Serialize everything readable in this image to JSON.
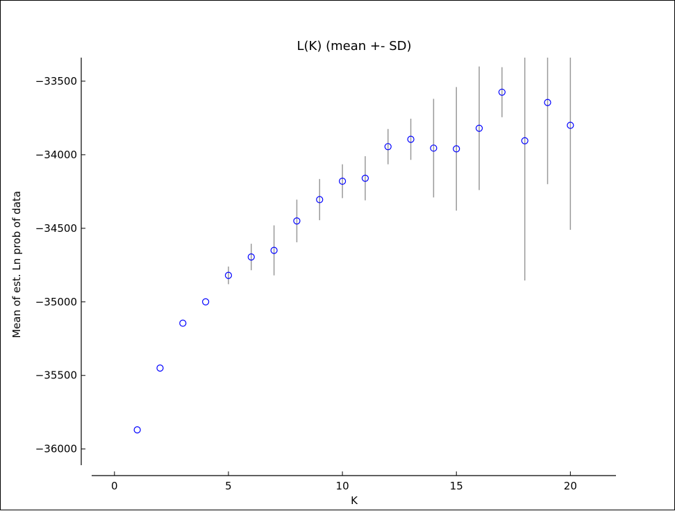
{
  "chart_data": {
    "type": "scatter",
    "title": "L(K) (mean +- SD)",
    "xlabel": "K",
    "ylabel": "Mean of est. Ln prob of data",
    "xlim": [
      -1,
      22
    ],
    "ylim": [
      -36110,
      -33340
    ],
    "x_ticks": [
      "0",
      "5",
      "10",
      "15",
      "20"
    ],
    "y_ticks": [
      "−33500",
      "−34000",
      "−34500",
      "−35000",
      "−35500",
      "−36000"
    ],
    "marker_color": "#0000ff",
    "errorbar_color": "#999999",
    "grid": false,
    "series": [
      {
        "points": [
          {
            "x": 1,
            "y": -35870,
            "sd": 0
          },
          {
            "x": 2,
            "y": -35450,
            "sd": 0
          },
          {
            "x": 3,
            "y": -35145,
            "sd": 0
          },
          {
            "x": 4,
            "y": -35000,
            "sd": 0
          },
          {
            "x": 5,
            "y": -34820,
            "sd": 60
          },
          {
            "x": 6,
            "y": -34695,
            "sd": 90
          },
          {
            "x": 7,
            "y": -34650,
            "sd": 170
          },
          {
            "x": 8,
            "y": -34450,
            "sd": 145
          },
          {
            "x": 9,
            "y": -34305,
            "sd": 140
          },
          {
            "x": 10,
            "y": -34180,
            "sd": 115
          },
          {
            "x": 11,
            "y": -34160,
            "sd": 150
          },
          {
            "x": 12,
            "y": -33945,
            "sd": 120
          },
          {
            "x": 13,
            "y": -33895,
            "sd": 140
          },
          {
            "x": 14,
            "y": -33955,
            "sd": 335
          },
          {
            "x": 15,
            "y": -33960,
            "sd": 420
          },
          {
            "x": 16,
            "y": -33820,
            "sd": 420
          },
          {
            "x": 17,
            "y": -33575,
            "sd": 170
          },
          {
            "x": 18,
            "y": -33905,
            "sd": 950
          },
          {
            "x": 19,
            "y": -33645,
            "sd": 555
          },
          {
            "x": 20,
            "y": -33800,
            "sd": 710
          }
        ]
      }
    ]
  }
}
